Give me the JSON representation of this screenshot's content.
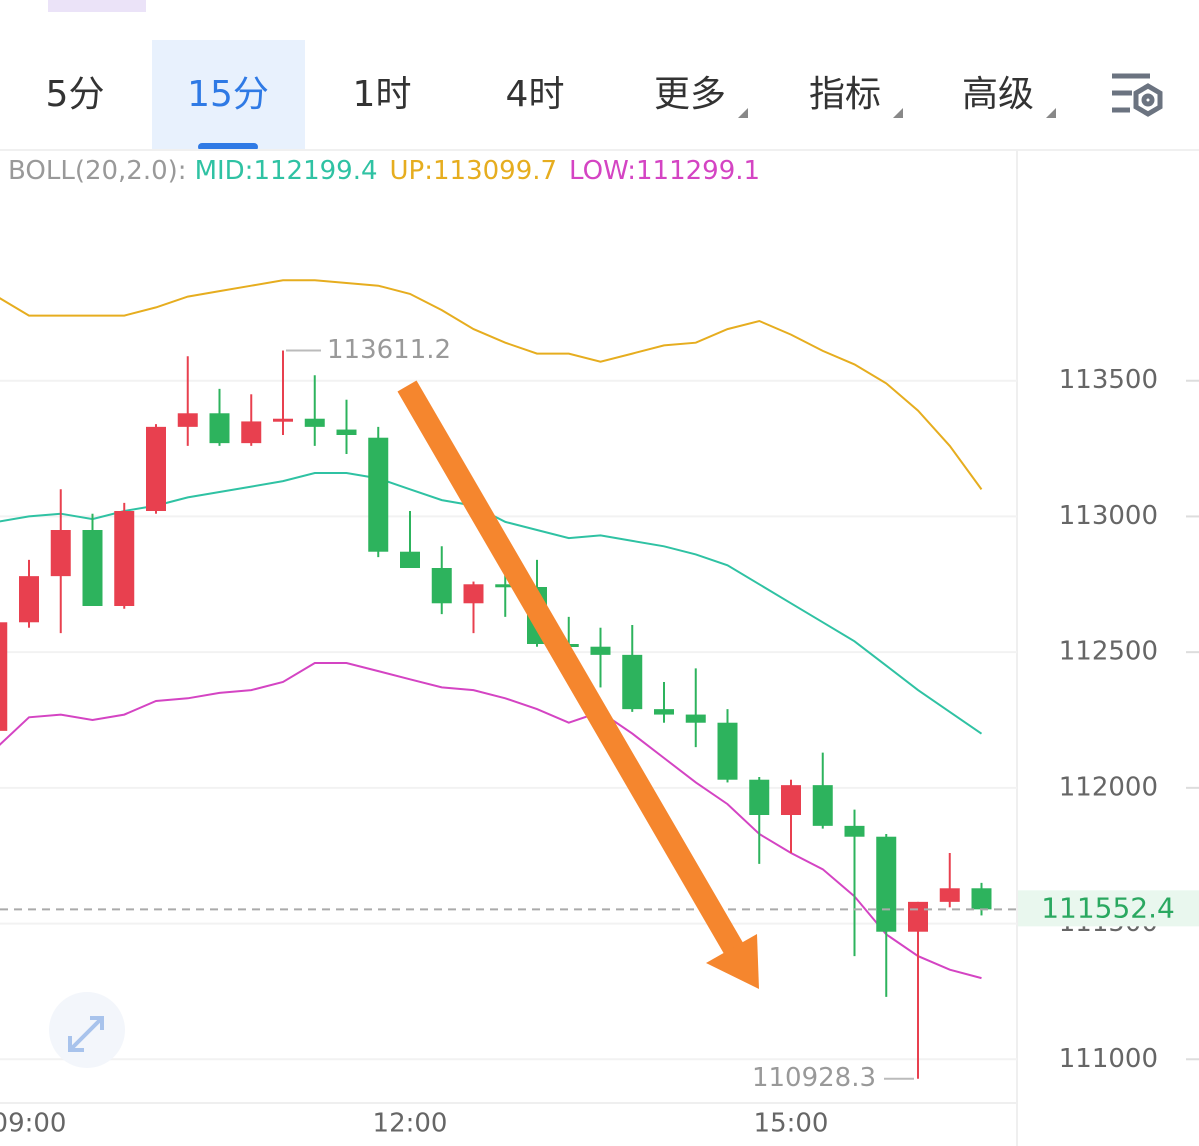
{
  "tabs": [
    "5分",
    "15分",
    "1时",
    "4时",
    "更多",
    "指标",
    "高级"
  ],
  "selected_tab": 1,
  "chart_data": {
    "type": "candlestick",
    "indicator": "BOLL(20,2.0):",
    "categories": [
      null,
      "09:00",
      null,
      null,
      null,
      null,
      null,
      null,
      null,
      null,
      null,
      null,
      null,
      "12:00",
      null,
      null,
      null,
      null,
      null,
      null,
      null,
      null,
      null,
      null,
      null,
      "15:00",
      null,
      null,
      null,
      null,
      null,
      null
    ],
    "open": [
      112210,
      112610,
      112780,
      112950,
      112670,
      113020,
      113330,
      113380,
      113270,
      113350,
      113360,
      113320,
      113290,
      112870,
      112810,
      112680,
      112750,
      112740,
      112530,
      112520,
      112490,
      112290,
      112270,
      112240,
      112030,
      111900,
      112010,
      111860,
      111820,
      111470,
      111580,
      111630
    ],
    "high": [
      112610,
      112840,
      113100,
      113010,
      113050,
      113340,
      113590,
      113470,
      113450,
      113611.2,
      113520,
      113430,
      113330,
      113020,
      112890,
      112760,
      112860,
      112840,
      112630,
      112590,
      112600,
      112390,
      112440,
      112290,
      112040,
      112030,
      112130,
      111920,
      111830,
      111580,
      111760,
      111650
    ],
    "low": [
      112210,
      112590,
      112570,
      112670,
      112660,
      113010,
      113260,
      113260,
      113260,
      113300,
      113260,
      113230,
      112850,
      112810,
      112640,
      112570,
      112630,
      112520,
      112470,
      112370,
      112280,
      112240,
      112150,
      112020,
      111720,
      111760,
      111850,
      111380,
      111230,
      110928.3,
      111560,
      111530
    ],
    "close": [
      112610,
      112780,
      112950,
      112670,
      113020,
      113330,
      113380,
      113270,
      113350,
      113360,
      113330,
      113300,
      112870,
      112810,
      112680,
      112750,
      112740,
      112530,
      112520,
      112490,
      112290,
      112270,
      112240,
      112030,
      111900,
      112010,
      111860,
      111820,
      111470,
      111580,
      111630,
      111552.4
    ],
    "up_color": "#e8404f",
    "down_color": "#2db35d",
    "bands": [
      {
        "name": "MID:",
        "color": "#2fc2a3",
        "values": [
          112980,
          113000,
          113010,
          112990,
          113020,
          113040,
          113070,
          113090,
          113110,
          113130,
          113160,
          113160,
          113140,
          113100,
          113060,
          113040,
          112980,
          112950,
          112920,
          112930,
          112910,
          112890,
          112860,
          112820,
          112750,
          112680,
          112610,
          112540,
          112450,
          112360,
          112280,
          112199.4
        ]
      },
      {
        "name": "UP:",
        "color": "#e6ad1f",
        "values": [
          113810,
          113740,
          113740,
          113740,
          113740,
          113770,
          113810,
          113830,
          113850,
          113870,
          113870,
          113860,
          113850,
          113820,
          113760,
          113690,
          113640,
          113600,
          113600,
          113570,
          113600,
          113630,
          113640,
          113690,
          113720,
          113670,
          113610,
          113560,
          113490,
          113390,
          113260,
          113099.7
        ]
      },
      {
        "name": "LOW:",
        "color": "#d444c3",
        "values": [
          112150,
          112260,
          112270,
          112250,
          112270,
          112320,
          112330,
          112350,
          112360,
          112390,
          112460,
          112460,
          112430,
          112400,
          112370,
          112360,
          112330,
          112290,
          112240,
          112280,
          112200,
          112110,
          112020,
          111940,
          111830,
          111760,
          111700,
          111600,
          111460,
          111380,
          111330,
          111299.1
        ]
      }
    ],
    "ylim": [
      110850,
      114350
    ],
    "yticks": [
      111000,
      111500,
      112000,
      112500,
      113000,
      113500
    ],
    "grid": true
  }
}
